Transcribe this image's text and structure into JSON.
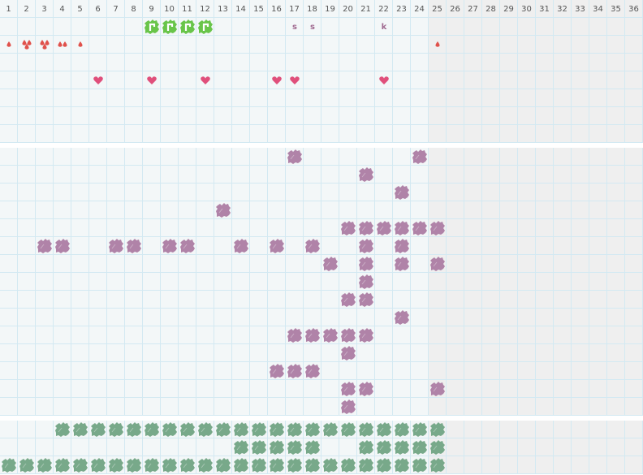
{
  "header": {
    "columns": [
      "1",
      "2",
      "3",
      "4",
      "5",
      "6",
      "7",
      "8",
      "9",
      "10",
      "11",
      "12",
      "13",
      "14",
      "15",
      "16",
      "17",
      "18",
      "19",
      "20",
      "21",
      "22",
      "23",
      "24",
      "25",
      "26",
      "27",
      "28",
      "29",
      "30",
      "31",
      "32",
      "33",
      "34",
      "35",
      "36"
    ],
    "active_columns": 24
  },
  "colors": {
    "purple_plant": "#b083a8",
    "green_plant": "#78a98a",
    "bright_plant": "#69c54a",
    "drop": "#e0514b",
    "heart": "#e04f7b",
    "letter": "#a06a90",
    "inactive_bg": "#efefef",
    "cell_bg": "#f3f7f8",
    "grid_line": "#d3e9f2"
  },
  "top_section": {
    "rows": 7,
    "bright_plants": [
      {
        "row": 1,
        "cols": [
          9,
          10,
          11,
          12
        ]
      }
    ],
    "letters": [
      {
        "row": 1,
        "col": 17,
        "text": "s"
      },
      {
        "row": 1,
        "col": 18,
        "text": "s"
      },
      {
        "row": 1,
        "col": 22,
        "text": "k"
      }
    ],
    "drops": [
      {
        "row": 2,
        "col": 1,
        "count": 1
      },
      {
        "row": 2,
        "col": 2,
        "count": 3
      },
      {
        "row": 2,
        "col": 3,
        "count": 3
      },
      {
        "row": 2,
        "col": 4,
        "count": 2
      },
      {
        "row": 2,
        "col": 5,
        "count": 1
      },
      {
        "row": 2,
        "col": 25,
        "count": 1
      }
    ],
    "hearts": [
      {
        "row": 4,
        "cols": [
          6,
          9,
          12,
          16,
          17,
          22
        ]
      }
    ]
  },
  "middle_section": {
    "rows": 15,
    "purple_plants": [
      {
        "row": 1,
        "cols": [
          17,
          24
        ]
      },
      {
        "row": 2,
        "cols": [
          21
        ]
      },
      {
        "row": 3,
        "cols": [
          23
        ]
      },
      {
        "row": 4,
        "cols": [
          13
        ]
      },
      {
        "row": 5,
        "cols": [
          20,
          21,
          22,
          23,
          24,
          25
        ]
      },
      {
        "row": 6,
        "cols": [
          3,
          4,
          7,
          8,
          10,
          11,
          14,
          16,
          18,
          21,
          23
        ]
      },
      {
        "row": 7,
        "cols": [
          19,
          21,
          23,
          25
        ]
      },
      {
        "row": 8,
        "cols": [
          21
        ]
      },
      {
        "row": 9,
        "cols": [
          20,
          21
        ]
      },
      {
        "row": 10,
        "cols": [
          23
        ]
      },
      {
        "row": 11,
        "cols": [
          17,
          18,
          19,
          20,
          21
        ]
      },
      {
        "row": 12,
        "cols": [
          20
        ]
      },
      {
        "row": 13,
        "cols": [
          16,
          17,
          18
        ]
      },
      {
        "row": 14,
        "cols": [
          20,
          21,
          25
        ]
      },
      {
        "row": 15,
        "cols": [
          20
        ]
      }
    ]
  },
  "bottom_section": {
    "rows": 3,
    "green_plants": [
      {
        "row": 1,
        "cols": [
          4,
          5,
          6,
          7,
          8,
          9,
          10,
          11,
          12,
          13,
          14,
          15,
          16,
          17,
          18,
          19,
          20,
          21,
          22,
          23,
          24,
          25
        ]
      },
      {
        "row": 2,
        "cols": [
          14,
          15,
          16,
          17,
          18,
          21,
          22,
          23,
          24,
          25
        ]
      },
      {
        "row": 3,
        "cols": [
          1,
          2,
          3,
          4,
          5,
          6,
          7,
          8,
          9,
          10,
          11,
          12,
          13,
          14,
          15,
          16,
          17,
          18,
          19,
          20,
          21,
          22,
          23,
          24,
          25
        ]
      }
    ]
  }
}
